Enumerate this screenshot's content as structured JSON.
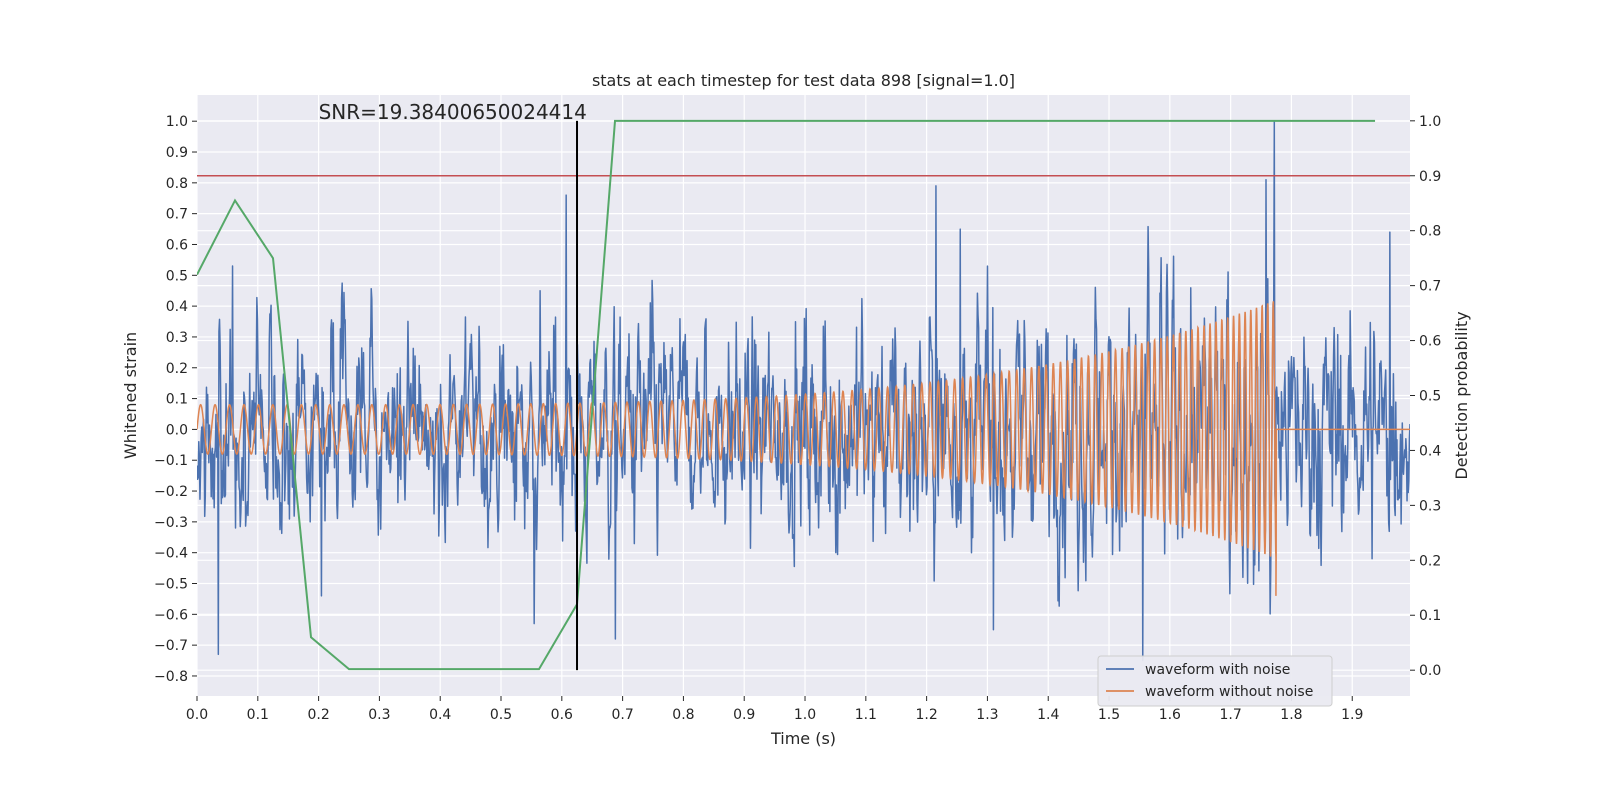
{
  "chart_data": {
    "type": "line",
    "title": "stats at each timestep for test data 898 [signal=1.0]",
    "xlabel": "Time (s)",
    "ylabel": "Whitened strain",
    "y2label": "Detection probability",
    "xlim": [
      0.0,
      1.995
    ],
    "ylim": [
      -0.865,
      1.085
    ],
    "y2lim": [
      -0.047,
      1.047
    ],
    "x_ticks": [
      0.0,
      0.1,
      0.2,
      0.3,
      0.4,
      0.5,
      0.6,
      0.7,
      0.8,
      0.9,
      1.0,
      1.1,
      1.2,
      1.3,
      1.4,
      1.5,
      1.6,
      1.7,
      1.8,
      1.9
    ],
    "x_tick_labels": [
      "0.0",
      "0.1",
      "0.2",
      "0.3",
      "0.4",
      "0.5",
      "0.6",
      "0.7",
      "0.8",
      "0.9",
      "1.0",
      "1.1",
      "1.2",
      "1.3",
      "1.4",
      "1.5",
      "1.6",
      "1.7",
      "1.8",
      "1.9"
    ],
    "y_ticks": [
      1.0,
      0.9,
      0.8,
      0.7,
      0.6,
      0.5,
      0.4,
      0.3,
      0.2,
      0.1,
      0.0,
      -0.1,
      -0.2,
      -0.3,
      -0.4,
      -0.5,
      -0.6,
      -0.7,
      -0.8
    ],
    "y_tick_labels": [
      "1.0",
      "0.9",
      "0.8",
      "0.7",
      "0.6",
      "0.5",
      "0.4",
      "0.3",
      "0.2",
      "0.1",
      "0.0",
      "−0.1",
      "−0.2",
      "−0.3",
      "−0.4",
      "−0.5",
      "−0.6",
      "−0.7",
      "−0.8"
    ],
    "y2_ticks": [
      1.0,
      0.9,
      0.8,
      0.7,
      0.6,
      0.5,
      0.4,
      0.3,
      0.2,
      0.1,
      0.0
    ],
    "y2_tick_labels": [
      "1.0",
      "0.9",
      "0.8",
      "0.7",
      "0.6",
      "0.5",
      "0.4",
      "0.3",
      "0.2",
      "0.1",
      "0.0"
    ],
    "grid": true,
    "legend": {
      "position": "lower-right",
      "entries": [
        "waveform with noise",
        "waveform without noise"
      ]
    },
    "annotation": {
      "text": "SNR=19.38400650024414",
      "x": 0.2,
      "y": 1.0
    },
    "colors": {
      "noise": "#4c72b0",
      "clean": "#dd8452",
      "prob": "#55a868",
      "threshold": "#c44e52",
      "marker": "#000000",
      "background": "#eaeaf2"
    },
    "series": [
      {
        "name": "waveform with noise",
        "axis": "left",
        "kind": "noisy-strain",
        "x_range": [
          0.0,
          1.995
        ],
        "samples": 2048,
        "envelope": [
          [
            0.0,
            0.42
          ],
          [
            0.5,
            0.43
          ],
          [
            1.0,
            0.47
          ],
          [
            1.5,
            0.5
          ],
          [
            1.77,
            0.55
          ],
          [
            1.995,
            0.45
          ]
        ],
        "peaks": [
          {
            "x": 0.035,
            "y": -0.73
          },
          {
            "x": 0.058,
            "y": 0.53
          },
          {
            "x": 0.205,
            "y": -0.54
          },
          {
            "x": 0.555,
            "y": -0.63
          },
          {
            "x": 0.607,
            "y": 0.76
          },
          {
            "x": 0.688,
            "y": -0.68
          },
          {
            "x": 1.215,
            "y": 0.79
          },
          {
            "x": 1.255,
            "y": 0.65
          },
          {
            "x": 1.31,
            "y": -0.65
          },
          {
            "x": 1.555,
            "y": -0.75
          },
          {
            "x": 1.758,
            "y": 0.81
          },
          {
            "x": 1.772,
            "y": 1.0
          },
          {
            "x": 1.962,
            "y": 0.64
          }
        ]
      },
      {
        "name": "waveform without noise",
        "axis": "left",
        "kind": "chirp",
        "offset": 0.0,
        "amp_start": 0.08,
        "amp_end": 0.42,
        "freq_start": 42,
        "freq_end": 110,
        "t_merge": 1.775,
        "min_at_merge": -0.54
      },
      {
        "name": "detection probability",
        "axis": "right",
        "x": [
          0.0,
          0.0625,
          0.125,
          0.1875,
          0.25,
          0.5625,
          0.625,
          0.6875,
          1.9375
        ],
        "values": [
          0.72,
          0.855,
          0.75,
          0.06,
          0.002,
          0.002,
          0.12,
          1.0,
          1.0
        ]
      },
      {
        "name": "threshold",
        "axis": "right",
        "y": 0.9
      },
      {
        "name": "marker",
        "axis": "right",
        "x": 0.625,
        "y_range": [
          0.0,
          1.0
        ]
      }
    ]
  }
}
